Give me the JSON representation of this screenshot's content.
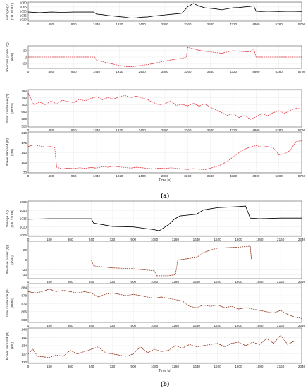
{
  "chart_data": [
    {
      "figure": "(a)",
      "type": "line",
      "xlabel": "Time [s]",
      "xlim": [
        0,
        5760
      ],
      "xticks": [
        0,
        480,
        960,
        1440,
        1920,
        2400,
        2880,
        3360,
        3840,
        4320,
        4800,
        5280,
        5760
      ],
      "panels": [
        {
          "id": "a-voltage",
          "ylabel": "Voltage (V)",
          "ylabel2": "[p.u. x1000]",
          "ylim": [
            1015,
            1082
          ],
          "yticks": [
            1020,
            1035,
            1050,
            1065,
            1080
          ],
          "color": "#000000",
          "dashed": false,
          "x": [
            0,
            240,
            480,
            720,
            960,
            1200,
            1380,
            1440,
            1560,
            1680,
            1800,
            1920,
            2040,
            2160,
            2280,
            2400,
            2520,
            2640,
            2760,
            2880,
            3000,
            3120,
            3240,
            3360,
            3480,
            3600,
            3720,
            3840,
            3960,
            4080,
            4200,
            4320,
            4440,
            4560,
            4680,
            4750,
            4800,
            4900,
            5040,
            5280,
            5520,
            5760
          ],
          "y": [
            1047,
            1045,
            1047,
            1046,
            1047,
            1047,
            1047,
            1040,
            1038,
            1035,
            1033,
            1031,
            1029,
            1026,
            1027,
            1029,
            1030,
            1033,
            1035,
            1037,
            1039,
            1041,
            1043,
            1066,
            1077,
            1068,
            1062,
            1060,
            1058,
            1055,
            1059,
            1062,
            1063,
            1065,
            1067,
            1069,
            1050,
            1049,
            1050,
            1049,
            1050,
            1049
          ]
        },
        {
          "id": "a-reactive",
          "ylabel": "Reactive power (Q)",
          "ylabel2": "[kVar]",
          "ylim": [
            -35,
            35
          ],
          "yticks": [
            -20,
            0,
            20
          ],
          "color": "#e0303a",
          "dashed": true,
          "x": [
            0,
            480,
            960,
            1400,
            1440,
            1560,
            1680,
            1800,
            1920,
            2040,
            2160,
            2280,
            2400,
            2520,
            2640,
            2760,
            2880,
            3000,
            3120,
            3240,
            3330,
            3360,
            3480,
            3600,
            3720,
            3840,
            3960,
            4080,
            4200,
            4320,
            4440,
            4560,
            4680,
            4750,
            4800,
            5040,
            5280,
            5520,
            5760
          ],
          "y": [
            0,
            0,
            0,
            0,
            -10,
            -14,
            -18,
            -22,
            -26,
            -29,
            -30,
            -28,
            -25,
            -23,
            -20,
            -16,
            -12,
            -9,
            -6,
            -4,
            0,
            30,
            26,
            21,
            18,
            16,
            14,
            12,
            16,
            20,
            18,
            17,
            16,
            26,
            0,
            0,
            0,
            0,
            0
          ]
        },
        {
          "id": "a-solar",
          "ylabel": "Solar irradiance (G)",
          "ylabel2": "[W/m²]",
          "ylim": [
            575,
            785
          ],
          "yticks": [
            580,
            620,
            660,
            700,
            740,
            780
          ],
          "color": "#e0303a",
          "dashed": true,
          "x": [
            0,
            120,
            240,
            360,
            480,
            600,
            720,
            840,
            960,
            1080,
            1200,
            1320,
            1440,
            1560,
            1680,
            1800,
            1920,
            2040,
            2160,
            2280,
            2400,
            2520,
            2640,
            2760,
            2880,
            3000,
            3120,
            3240,
            3360,
            3480,
            3600,
            3720,
            3840,
            3960,
            4080,
            4200,
            4320,
            4440,
            4560,
            4680,
            4800,
            4920,
            5040,
            5160,
            5280,
            5400,
            5520,
            5640,
            5760
          ],
          "y": [
            765,
            700,
            715,
            700,
            720,
            705,
            725,
            718,
            712,
            730,
            722,
            735,
            745,
            728,
            740,
            732,
            744,
            752,
            740,
            748,
            738,
            728,
            712,
            700,
            705,
            722,
            696,
            702,
            693,
            708,
            692,
            705,
            685,
            670,
            655,
            640,
            650,
            628,
            640,
            618,
            632,
            650,
            638,
            655,
            666,
            652,
            668,
            680,
            676
          ]
        },
        {
          "id": "a-power",
          "ylabel": "Power demand (P)",
          "ylabel2": "[kW]",
          "ylim": [
            68,
            214
          ],
          "yticks": [
            70,
            105,
            140,
            175,
            210
          ],
          "color": "#e0303a",
          "dashed": true,
          "x": [
            0,
            120,
            240,
            360,
            480,
            560,
            600,
            720,
            840,
            960,
            1080,
            1200,
            1320,
            1440,
            1560,
            1680,
            1800,
            1920,
            2040,
            2160,
            2280,
            2400,
            2520,
            2640,
            2760,
            2880,
            3000,
            3120,
            3240,
            3360,
            3480,
            3600,
            3720,
            3840,
            3960,
            4080,
            4200,
            4320,
            4440,
            4560,
            4680,
            4800,
            4920,
            5040,
            5160,
            5280,
            5400,
            5520,
            5640,
            5760
          ],
          "y": [
            162,
            168,
            164,
            160,
            162,
            158,
            88,
            82,
            85,
            83,
            86,
            84,
            87,
            85,
            90,
            88,
            92,
            89,
            87,
            85,
            88,
            86,
            84,
            82,
            85,
            83,
            86,
            84,
            82,
            80,
            83,
            81,
            79,
            85,
            90,
            98,
            110,
            125,
            140,
            152,
            160,
            165,
            160,
            162,
            158,
            132,
            136,
            148,
            180,
            182
          ]
        }
      ]
    },
    {
      "figure": "(b)",
      "type": "line",
      "xlabel": "Time [s]",
      "xlim": [
        0,
        2340
      ],
      "xticks": [
        0,
        180,
        360,
        540,
        720,
        900,
        1080,
        1260,
        1440,
        1620,
        1800,
        1980,
        2160,
        2340
      ],
      "panels": [
        {
          "id": "b-voltage",
          "ylabel": "Voltage (V)",
          "ylabel2": "[p.u. x1000]",
          "ylim": [
            1003,
            1067
          ],
          "yticks": [
            1005,
            1020,
            1035,
            1050,
            1065
          ],
          "color": "#000000",
          "dashed": false,
          "x": [
            0,
            180,
            360,
            540,
            560,
            640,
            720,
            900,
            1080,
            1120,
            1200,
            1250,
            1300,
            1440,
            1500,
            1560,
            1620,
            1800,
            1860,
            1900,
            1980,
            2160,
            2340
          ],
          "y": [
            1034,
            1035,
            1035,
            1035,
            1027,
            1024,
            1021,
            1020,
            1015,
            1013,
            1024,
            1034,
            1040,
            1043,
            1051,
            1053,
            1055,
            1057,
            1058,
            1036,
            1035,
            1036,
            1036
          ]
        },
        {
          "id": "b-reactive",
          "ylabel": "Reactive power (Q)",
          "ylabel2": "[kVar]",
          "ylim": [
            -38,
            38
          ],
          "yticks": [
            -30,
            -20,
            0,
            20
          ],
          "color": "#8b2b10",
          "dashed": true,
          "x": [
            0,
            180,
            360,
            540,
            560,
            640,
            720,
            900,
            1080,
            1100,
            1200,
            1260,
            1280,
            1440,
            1500,
            1560,
            1620,
            1800,
            1900,
            1910,
            1980,
            2160,
            2340
          ],
          "y": [
            0,
            0,
            0,
            0,
            -12,
            -14,
            -16,
            -18,
            -22,
            -32,
            -32,
            -30,
            0,
            5,
            15,
            20,
            24,
            26,
            28,
            0,
            0,
            0,
            0
          ]
        },
        {
          "id": "b-solar",
          "ylabel": "Solar irradiance (G)",
          "ylabel2": "[W/m²]",
          "ylim": [
            858,
            887
          ],
          "yticks": [
            860,
            866,
            872,
            878,
            884
          ],
          "color": "#8b2b10",
          "dashed": true,
          "x": [
            0,
            60,
            120,
            180,
            240,
            300,
            360,
            420,
            480,
            540,
            600,
            660,
            720,
            780,
            840,
            900,
            960,
            1020,
            1080,
            1140,
            1200,
            1260,
            1320,
            1380,
            1440,
            1500,
            1560,
            1620,
            1680,
            1740,
            1800,
            1860,
            1920,
            1980,
            2040,
            2100,
            2160,
            2220,
            2280,
            2340
          ],
          "y": [
            881,
            880,
            881,
            883,
            881,
            882,
            881,
            880,
            881,
            880,
            877,
            879,
            880,
            879,
            878,
            879,
            878,
            877,
            876,
            877,
            876,
            875,
            874,
            870,
            869,
            871,
            870,
            871,
            869,
            870,
            868,
            869,
            868,
            867,
            866,
            865,
            867,
            864,
            862,
            861
          ]
        },
        {
          "id": "b-power",
          "ylabel": "Power demand (P)",
          "ylabel2": "[kW]",
          "ylim": [
            119,
            149
          ],
          "yticks": [
            120,
            127,
            134,
            141,
            148
          ],
          "color": "#8b2b10",
          "dashed": true,
          "x": [
            0,
            40,
            80,
            180,
            240,
            300,
            360,
            420,
            480,
            540,
            600,
            660,
            720,
            780,
            840,
            900,
            960,
            1020,
            1080,
            1140,
            1200,
            1260,
            1320,
            1380,
            1440,
            1500,
            1560,
            1620,
            1680,
            1740,
            1800,
            1860,
            1920,
            1980,
            2040,
            2100,
            2160,
            2220,
            2280,
            2340
          ],
          "y": [
            127,
            131,
            125,
            124,
            126,
            125,
            130,
            127,
            129,
            131,
            133,
            128,
            127,
            126,
            125,
            127,
            133,
            128,
            131,
            129,
            130,
            134,
            132,
            135,
            133,
            134,
            135,
            136,
            133,
            136,
            137,
            134,
            137,
            135,
            140,
            136,
            143,
            135,
            138,
            138
          ]
        }
      ]
    }
  ]
}
